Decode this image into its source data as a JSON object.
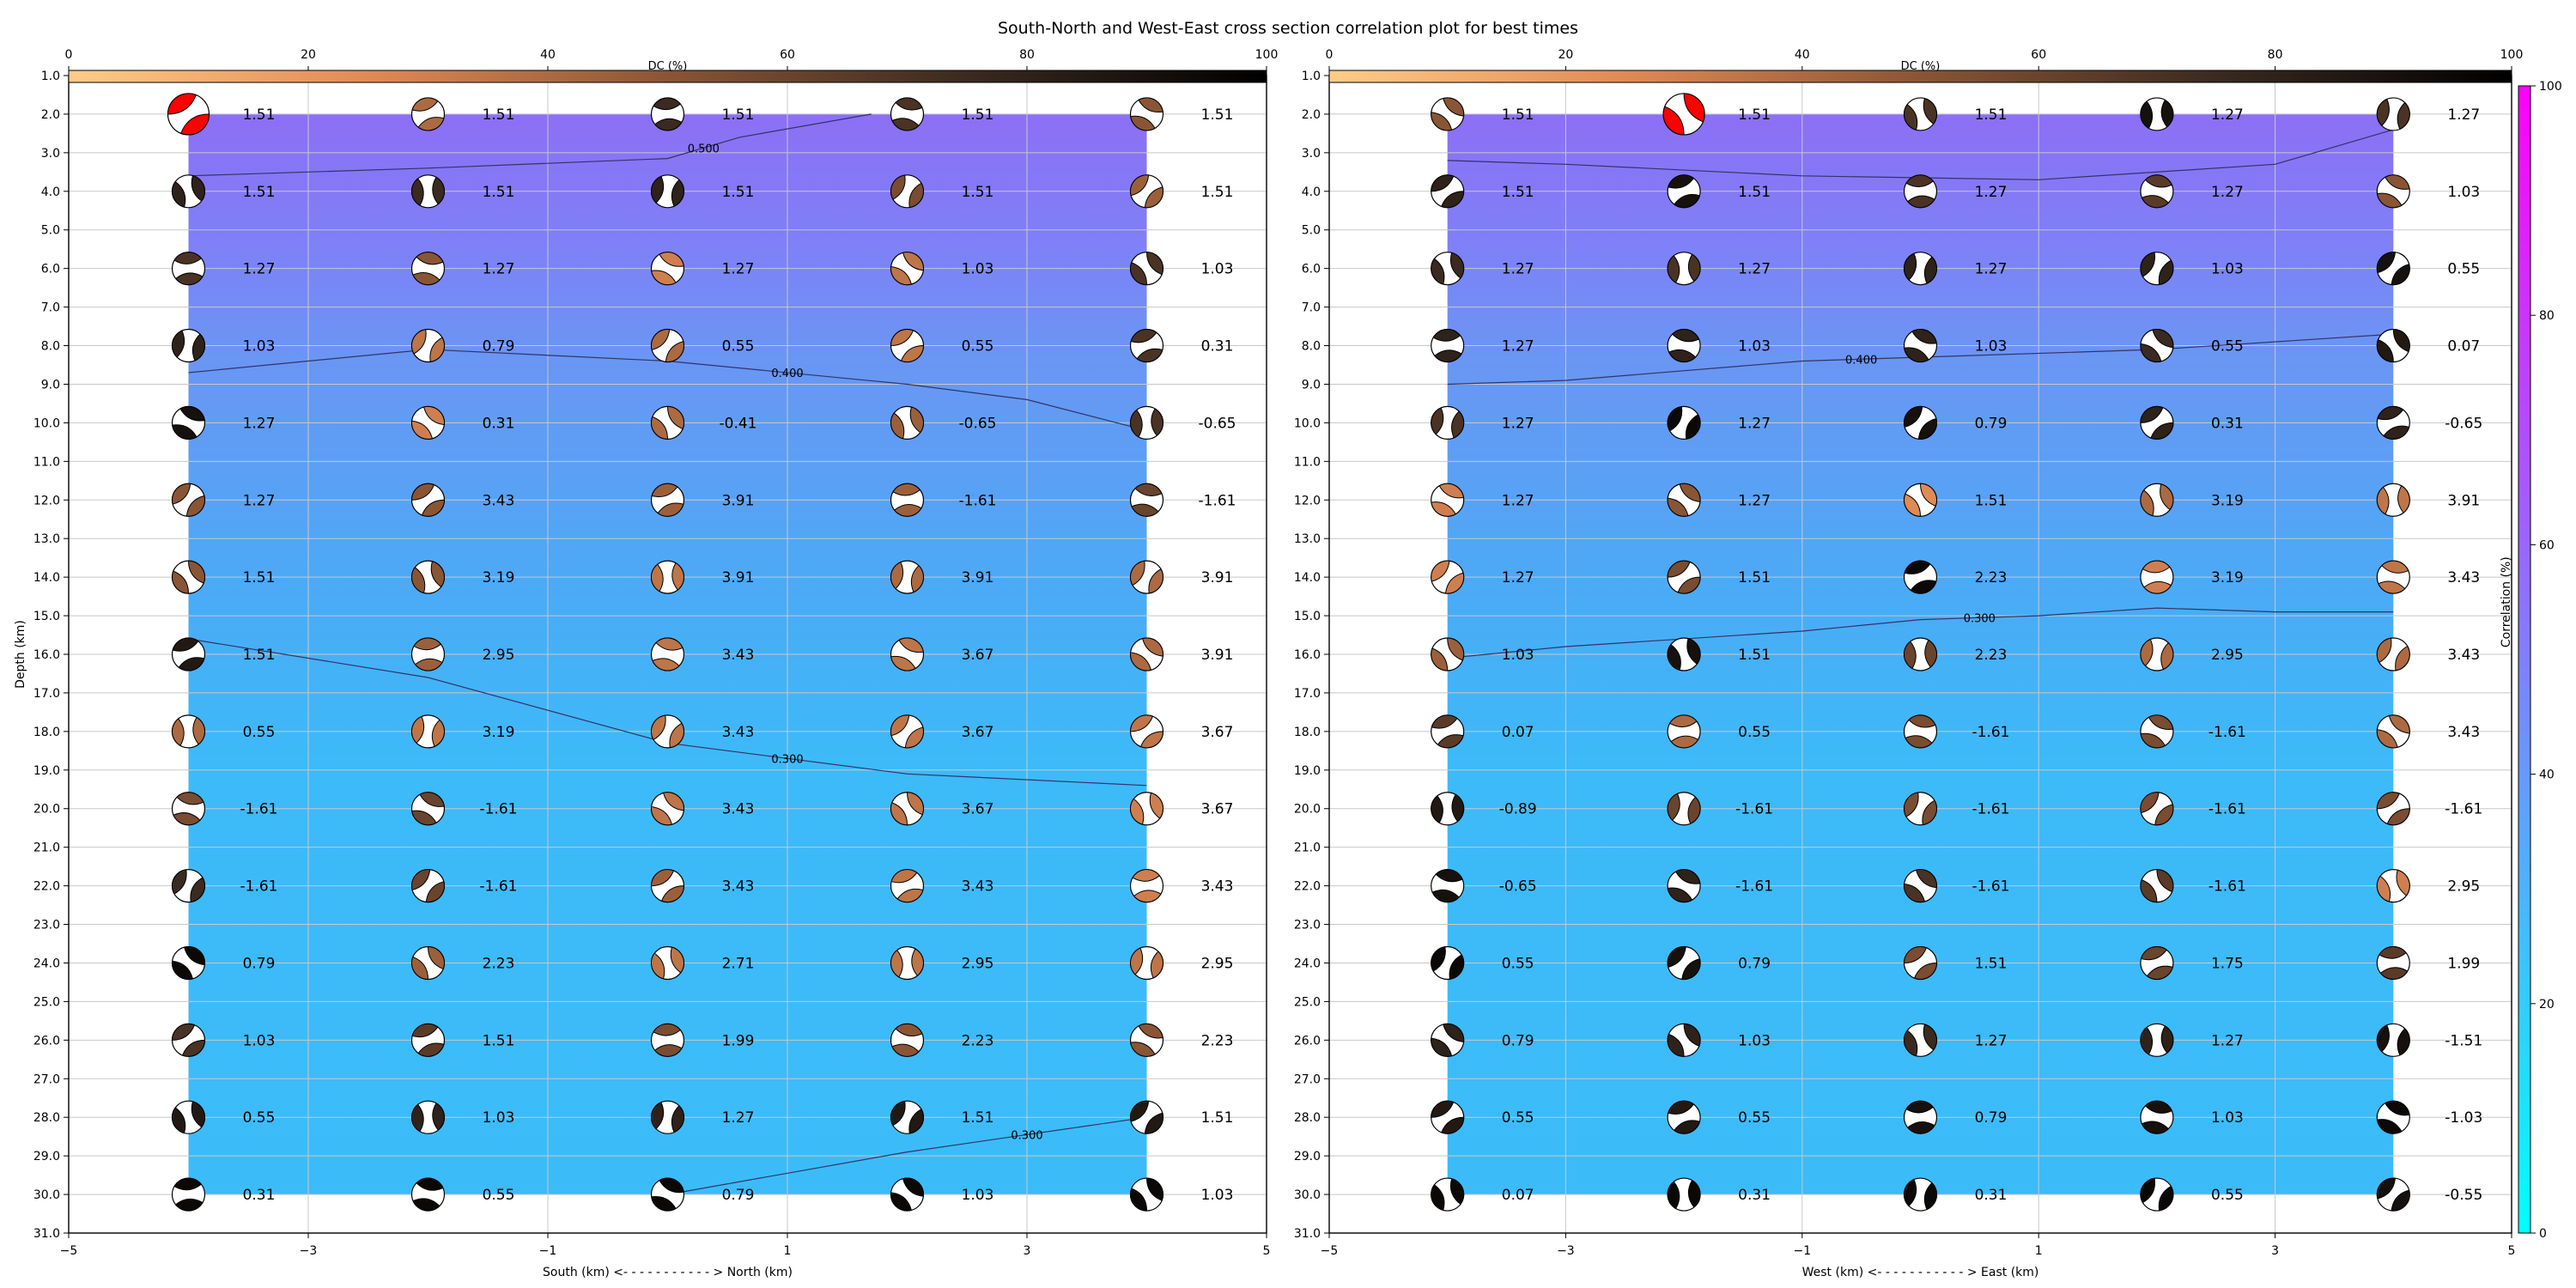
{
  "title": "South-North and West-East cross section correlation plot for best times",
  "colors": {
    "dc_cmap": [
      "#ffcc88",
      "#e08a55",
      "#8a5535",
      "#3a2a20",
      "#000000"
    ],
    "corr_cmap": [
      "#00ffff",
      "#ff00ff"
    ],
    "best_beachball": "#ff0000",
    "contour": "#333366",
    "grid": "#c8c8c8"
  },
  "chart_data": [
    {
      "type": "scatter",
      "xlabel": "South (km) <- - - - - - - - - - - > North (km)",
      "ylabel": "Depth (km)",
      "xlim": [
        -5,
        5
      ],
      "ylim": [
        31,
        1
      ],
      "xticks": [
        "−5",
        "−3",
        "−1",
        "1",
        "3",
        "5"
      ],
      "yticks": [
        "1.0",
        "2.0",
        "3.0",
        "4.0",
        "5.0",
        "6.0",
        "7.0",
        "8.0",
        "9.0",
        "10.0",
        "11.0",
        "12.0",
        "13.0",
        "14.0",
        "15.0",
        "16.0",
        "17.0",
        "18.0",
        "19.0",
        "20.0",
        "21.0",
        "22.0",
        "23.0",
        "24.0",
        "25.0",
        "26.0",
        "27.0",
        "28.0",
        "29.0",
        "30.0",
        "31.0"
      ],
      "grid": true,
      "x": [
        -4,
        -2,
        0,
        2,
        4
      ],
      "depths": [
        2,
        4,
        6,
        8,
        10,
        12,
        14,
        16,
        18,
        20,
        22,
        24,
        26,
        28,
        30
      ],
      "time_labels": [
        [
          "1.51",
          "1.51",
          "1.51",
          "1.51",
          "1.51"
        ],
        [
          "1.51",
          "1.51",
          "1.51",
          "1.51",
          "1.51"
        ],
        [
          "1.27",
          "1.27",
          "1.27",
          "1.03",
          "1.03"
        ],
        [
          "1.03",
          "0.79",
          "0.55",
          "0.55",
          "0.31"
        ],
        [
          "1.27",
          "0.31",
          "-0.41",
          "-0.65",
          "-0.65"
        ],
        [
          "1.27",
          "3.43",
          "3.91",
          "-1.61",
          "-1.61"
        ],
        [
          "1.51",
          "3.19",
          "3.91",
          "3.91",
          "3.91"
        ],
        [
          "1.51",
          "2.95",
          "3.43",
          "3.67",
          "3.91"
        ],
        [
          "0.55",
          "3.19",
          "3.43",
          "3.67",
          "3.67"
        ],
        [
          "-1.61",
          "-1.61",
          "3.43",
          "3.67",
          "3.67"
        ],
        [
          "-1.61",
          "-1.61",
          "3.43",
          "3.43",
          "3.43"
        ],
        [
          "0.79",
          "2.23",
          "2.71",
          "2.95",
          "2.95"
        ],
        [
          "1.03",
          "1.51",
          "1.99",
          "2.23",
          "2.23"
        ],
        [
          "0.55",
          "1.03",
          "1.27",
          "1.51",
          "1.51"
        ],
        [
          "0.31",
          "0.55",
          "0.79",
          "1.03",
          "1.03"
        ]
      ],
      "dc_percent": [
        [
          100,
          40,
          75,
          70,
          50
        ],
        [
          80,
          75,
          80,
          55,
          45
        ],
        [
          70,
          50,
          30,
          35,
          70
        ],
        [
          80,
          35,
          40,
          35,
          70
        ],
        [
          90,
          30,
          40,
          45,
          70
        ],
        [
          50,
          50,
          45,
          45,
          60
        ],
        [
          50,
          50,
          35,
          40,
          40
        ],
        [
          85,
          45,
          35,
          35,
          40
        ],
        [
          40,
          35,
          35,
          35,
          35
        ],
        [
          55,
          60,
          35,
          35,
          30
        ],
        [
          75,
          60,
          45,
          35,
          30
        ],
        [
          95,
          45,
          35,
          35,
          35
        ],
        [
          70,
          65,
          55,
          50,
          50
        ],
        [
          85,
          80,
          80,
          85,
          85
        ],
        [
          95,
          95,
          95,
          95,
          95
        ]
      ],
      "best_index": [
        0,
        0
      ],
      "correlation_contours": [
        {
          "label": "0.500",
          "x": [
            -4,
            -2,
            0,
            0.6,
            1.7
          ],
          "y": [
            3.6,
            3.4,
            3.15,
            2.6,
            2.0
          ]
        },
        {
          "label": "0.400",
          "x": [
            -4,
            -2,
            0,
            2,
            3,
            4
          ],
          "y": [
            8.7,
            8.1,
            8.4,
            9.0,
            9.4,
            10.2
          ]
        },
        {
          "label": "0.300",
          "x": [
            -4,
            -2,
            0,
            2,
            4
          ],
          "y": [
            15.6,
            16.6,
            18.3,
            19.1,
            19.4
          ]
        },
        {
          "label": "0.300",
          "x": [
            0,
            2,
            4
          ],
          "y": [
            30.0,
            28.9,
            28.0
          ]
        }
      ]
    },
    {
      "type": "scatter",
      "xlabel": "West (km) <- - - - - - - - - - - > East (km)",
      "ylabel": "Depth (km)",
      "xlim": [
        -5,
        5
      ],
      "ylim": [
        31,
        1
      ],
      "xticks": [
        "−5",
        "−3",
        "−1",
        "1",
        "3",
        "5"
      ],
      "yticks": [
        "1.0",
        "2.0",
        "3.0",
        "4.0",
        "5.0",
        "6.0",
        "7.0",
        "8.0",
        "9.0",
        "10.0",
        "11.0",
        "12.0",
        "13.0",
        "14.0",
        "15.0",
        "16.0",
        "17.0",
        "18.0",
        "19.0",
        "20.0",
        "21.0",
        "22.0",
        "23.0",
        "24.0",
        "25.0",
        "26.0",
        "27.0",
        "28.0",
        "29.0",
        "30.0",
        "31.0"
      ],
      "grid": true,
      "x": [
        -4,
        -2,
        0,
        2,
        4
      ],
      "depths": [
        2,
        4,
        6,
        8,
        10,
        12,
        14,
        16,
        18,
        20,
        22,
        24,
        26,
        28,
        30
      ],
      "time_labels": [
        [
          "1.51",
          "1.51",
          "1.51",
          "1.27",
          "1.27"
        ],
        [
          "1.51",
          "1.51",
          "1.27",
          "1.27",
          "1.03"
        ],
        [
          "1.27",
          "1.27",
          "1.27",
          "1.03",
          "0.55"
        ],
        [
          "1.27",
          "1.03",
          "1.03",
          "0.55",
          "0.07"
        ],
        [
          "1.27",
          "1.27",
          "0.79",
          "0.31",
          "-0.65"
        ],
        [
          "1.27",
          "1.27",
          "1.51",
          "3.19",
          "3.91"
        ],
        [
          "1.27",
          "1.51",
          "2.23",
          "3.19",
          "3.43"
        ],
        [
          "1.03",
          "1.51",
          "2.23",
          "2.95",
          "3.43"
        ],
        [
          "0.07",
          "0.55",
          "-1.61",
          "-1.61",
          "3.43"
        ],
        [
          "-0.89",
          "-1.61",
          "-1.61",
          "-1.61",
          "-1.61"
        ],
        [
          "-0.65",
          "-1.61",
          "-1.61",
          "-1.61",
          "2.95"
        ],
        [
          "0.55",
          "0.79",
          "1.51",
          "1.75",
          "1.99"
        ],
        [
          "0.79",
          "1.03",
          "1.27",
          "1.27",
          "-1.51"
        ],
        [
          "0.55",
          "0.55",
          "0.79",
          "1.03",
          "-1.03"
        ],
        [
          "0.07",
          "0.31",
          "0.31",
          "0.55",
          "-0.55"
        ]
      ],
      "dc_percent": [
        [
          50,
          100,
          70,
          90,
          70
        ],
        [
          80,
          90,
          70,
          65,
          50
        ],
        [
          75,
          70,
          80,
          80,
          90
        ],
        [
          80,
          80,
          80,
          75,
          85
        ],
        [
          70,
          95,
          90,
          80,
          80
        ],
        [
          30,
          50,
          25,
          40,
          35
        ],
        [
          30,
          55,
          95,
          30,
          35
        ],
        [
          45,
          90,
          60,
          40,
          40
        ],
        [
          65,
          40,
          55,
          55,
          40
        ],
        [
          85,
          60,
          55,
          55,
          55
        ],
        [
          90,
          80,
          70,
          65,
          30
        ],
        [
          95,
          90,
          55,
          60,
          65
        ],
        [
          80,
          80,
          75,
          80,
          90
        ],
        [
          85,
          85,
          90,
          90,
          95
        ],
        [
          95,
          95,
          95,
          95,
          90
        ]
      ],
      "best_index": [
        0,
        1
      ],
      "correlation_contours": [
        {
          "label": "",
          "x": [
            -4,
            -3,
            -1,
            1,
            3,
            4
          ],
          "y": [
            3.2,
            3.3,
            3.6,
            3.7,
            3.3,
            2.4
          ]
        },
        {
          "label": "0.400",
          "x": [
            -4,
            -3,
            -1,
            0,
            2,
            4
          ],
          "y": [
            9.0,
            8.9,
            8.4,
            8.3,
            8.1,
            7.7
          ]
        },
        {
          "label": "0.300",
          "x": [
            -4,
            -3,
            -1,
            0,
            1,
            2,
            3,
            4
          ],
          "y": [
            16.1,
            15.8,
            15.4,
            15.1,
            15.0,
            14.8,
            14.9,
            14.9
          ]
        }
      ]
    }
  ],
  "colorbars": {
    "dc": {
      "label": "DC (%)",
      "ticks": [
        "0",
        "20",
        "40",
        "60",
        "80",
        "100"
      ]
    },
    "correlation": {
      "label": "Correlation (%)",
      "ticks": [
        "0",
        "20",
        "40",
        "60",
        "80",
        "100"
      ]
    }
  }
}
